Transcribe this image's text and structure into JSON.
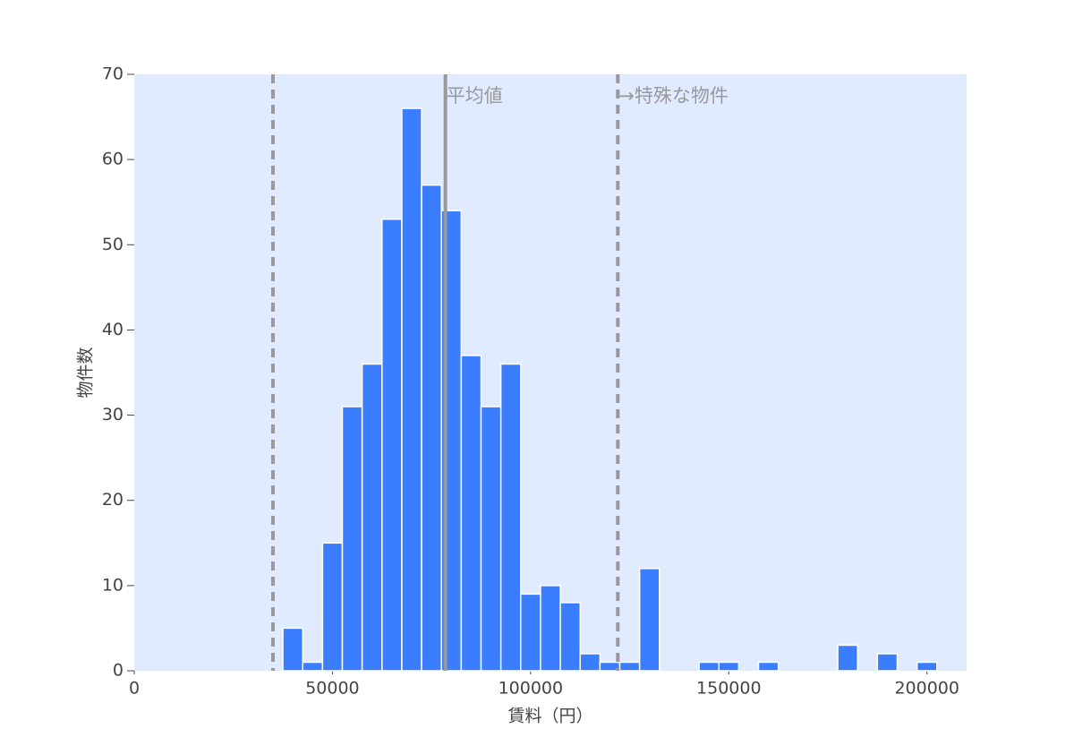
{
  "chart_data": {
    "type": "histogram",
    "x_label": "賃料（円）",
    "y_label": "物件数",
    "bins": [
      37500,
      42500,
      47500,
      52500,
      57500,
      62500,
      67500,
      72500,
      77500,
      82500,
      87500,
      92500,
      97500,
      102500,
      107500,
      112500,
      117500,
      122500,
      127500,
      132500,
      137500,
      142500,
      147500,
      152500,
      157500,
      162500,
      167500,
      172500,
      177500,
      182500,
      187500,
      192500,
      197500,
      202500
    ],
    "values": [
      5,
      1,
      15,
      31,
      36,
      53,
      66,
      57,
      54,
      37,
      31,
      36,
      9,
      10,
      8,
      2,
      1,
      1,
      12,
      0,
      0,
      1,
      1,
      0,
      1,
      0,
      0,
      0,
      3,
      0,
      2,
      0,
      1
    ],
    "color": "#3b7dff",
    "background": "#e1ebff",
    "xlim": [
      0,
      210000
    ],
    "ylim": [
      0,
      70
    ],
    "xticks": [
      0,
      50000,
      100000,
      150000,
      200000
    ],
    "yticks": [
      0,
      10,
      20,
      30,
      40,
      50,
      60,
      70
    ],
    "reference_lines": [
      {
        "x": 35000,
        "style": "dashed",
        "color": "#999999"
      },
      {
        "x": 78500,
        "style": "solid",
        "color": "#999999",
        "label": "平均値"
      },
      {
        "x": 122000,
        "style": "dashed",
        "color": "#999999",
        "label": "→特殊な物件"
      }
    ]
  }
}
